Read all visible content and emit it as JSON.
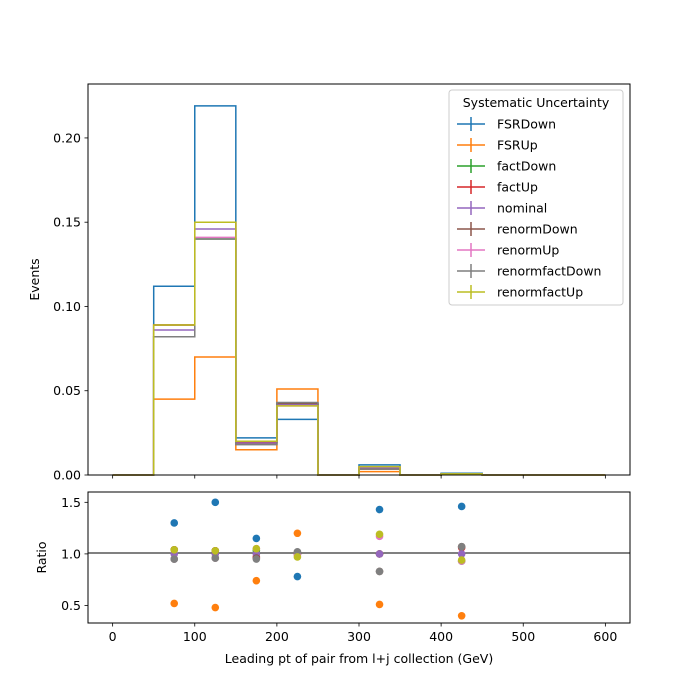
{
  "chart_data": [
    {
      "type": "step",
      "xlabel": "",
      "ylabel": "Events",
      "xlim": [
        -30,
        630
      ],
      "ylim": [
        0,
        0.232
      ],
      "xticks": [
        0,
        100,
        200,
        300,
        400,
        500,
        600
      ],
      "yticks": [
        "0.00",
        "0.05",
        "0.10",
        "0.15",
        "0.20"
      ],
      "ytick_values": [
        0,
        0.05,
        0.1,
        0.15,
        0.2
      ],
      "bin_edges": [
        0,
        50,
        100,
        150,
        200,
        250,
        300,
        350,
        400,
        450,
        500,
        550,
        600
      ],
      "legend": {
        "title": "Systematic Uncertainty",
        "position": "top-right"
      },
      "series": [
        {
          "name": "FSRDown",
          "color": "#1f77b4",
          "values": [
            0,
            0.112,
            0.219,
            0.022,
            0.033,
            0,
            0.006,
            0,
            0.001,
            0,
            0,
            0
          ]
        },
        {
          "name": "FSRUp",
          "color": "#ff7f0e",
          "values": [
            0,
            0.045,
            0.07,
            0.015,
            0.051,
            0,
            0.002,
            0,
            0.0003,
            0,
            0,
            0
          ]
        },
        {
          "name": "factDown",
          "color": "#2ca02c",
          "values": [
            0,
            0.082,
            0.14,
            0.0195,
            0.042,
            0,
            0.0042,
            0,
            0.00065,
            0,
            0,
            0
          ]
        },
        {
          "name": "factUp",
          "color": "#d62728",
          "values": [
            0,
            0.089,
            0.15,
            0.0195,
            0.042,
            0,
            0.0042,
            0,
            0.0007,
            0,
            0,
            0
          ]
        },
        {
          "name": "nominal",
          "color": "#9467bd",
          "values": [
            0,
            0.086,
            0.146,
            0.019,
            0.042,
            0,
            0.0042,
            0,
            0.0007,
            0,
            0,
            0
          ]
        },
        {
          "name": "renormDown",
          "color": "#8c564b",
          "values": [
            0,
            0.089,
            0.15,
            0.0182,
            0.0425,
            0,
            0.0035,
            0,
            0.00075,
            0,
            0,
            0
          ]
        },
        {
          "name": "renormUp",
          "color": "#e377c2",
          "values": [
            0,
            0.082,
            0.141,
            0.02,
            0.041,
            0,
            0.0049,
            0,
            0.00065,
            0,
            0,
            0
          ]
        },
        {
          "name": "renormfactDown",
          "color": "#7f7f7f",
          "values": [
            0,
            0.082,
            0.14,
            0.018,
            0.043,
            0,
            0.0035,
            0,
            0.00075,
            0,
            0,
            0
          ]
        },
        {
          "name": "renormfactUp",
          "color": "#bcbd22",
          "values": [
            0,
            0.089,
            0.15,
            0.02,
            0.041,
            0,
            0.005,
            0,
            0.00066,
            0,
            0,
            0
          ]
        }
      ]
    },
    {
      "type": "scatter",
      "xlabel": "Leading pt of pair from l+j collection (GeV)",
      "ylabel": "Ratio",
      "xlim": [
        -30,
        630
      ],
      "ylim": [
        0.33,
        1.6
      ],
      "xticks": [
        0,
        100,
        200,
        300,
        400,
        500,
        600
      ],
      "yticks": [
        "0.5",
        "1.0",
        "1.5"
      ],
      "ytick_values": [
        0.5,
        1.0,
        1.5
      ],
      "reference_line": 1.0,
      "x": [
        75,
        125,
        175,
        225,
        325,
        425
      ],
      "series": [
        {
          "name": "FSRDown",
          "color": "#1f77b4",
          "values": [
            1.3,
            1.5,
            1.15,
            0.78,
            1.43,
            1.46
          ]
        },
        {
          "name": "FSRUp",
          "color": "#ff7f0e",
          "values": [
            0.52,
            0.48,
            0.74,
            1.2,
            0.51,
            0.4
          ]
        },
        {
          "name": "factDown",
          "color": "#2ca02c",
          "values": [
            0.95,
            0.96,
            1.03,
            1.0,
            1.0,
            0.93
          ]
        },
        {
          "name": "factUp",
          "color": "#d62728",
          "values": [
            1.04,
            1.03,
            0.97,
            1.0,
            1.0,
            1.06
          ]
        },
        {
          "name": "nominal",
          "color": "#9467bd",
          "values": [
            1.0,
            1.0,
            1.0,
            1.0,
            1.0,
            1.0
          ]
        },
        {
          "name": "renormDown",
          "color": "#8c564b",
          "values": [
            1.04,
            1.03,
            0.96,
            1.01,
            0.83,
            1.07
          ]
        },
        {
          "name": "renormUp",
          "color": "#e377c2",
          "values": [
            0.95,
            0.96,
            1.05,
            0.99,
            1.17,
            0.93
          ]
        },
        {
          "name": "renormfactDown",
          "color": "#7f7f7f",
          "values": [
            0.95,
            0.96,
            0.95,
            1.02,
            0.83,
            1.07
          ]
        },
        {
          "name": "renormfactUp",
          "color": "#bcbd22",
          "values": [
            1.04,
            1.03,
            1.05,
            0.97,
            1.19,
            0.94
          ]
        }
      ]
    }
  ]
}
